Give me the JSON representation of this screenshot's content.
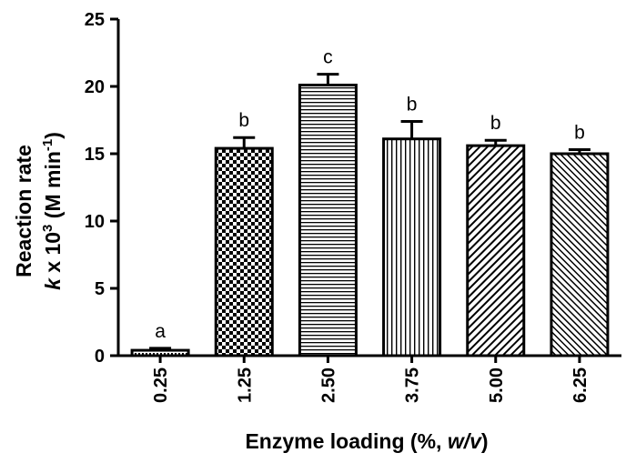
{
  "chart_data": {
    "type": "bar",
    "categories": [
      "0.25",
      "1.25",
      "2.50",
      "3.75",
      "5.00",
      "6.25"
    ],
    "values": [
      0.4,
      15.4,
      20.1,
      16.1,
      15.6,
      15.0
    ],
    "errors": [
      0.15,
      0.8,
      0.8,
      1.3,
      0.4,
      0.3
    ],
    "significance_letters": [
      "a",
      "b",
      "c",
      "b",
      "b",
      "b"
    ],
    "fill_patterns": [
      "dots",
      "checker",
      "horizontal-lines",
      "vertical-lines",
      "diagonal-lines",
      "diagonal-lines-fine"
    ],
    "y_ticks": [
      0,
      5,
      10,
      15,
      20,
      25
    ],
    "ylim": [
      0,
      25
    ],
    "xlabel": {
      "text_before": "Enzyme loading (%, ",
      "italic": "w/v",
      "text_after": ")"
    },
    "ylabel": {
      "line1": "Reaction rate",
      "k": "k",
      "times10": " x 10",
      "exp3": "3",
      "unit": " (M min",
      "exp_neg1": "-1",
      "close": ")"
    },
    "grid": false,
    "legend": "none",
    "bar_fill": "#ffffff",
    "bar_stroke": "#000000"
  }
}
